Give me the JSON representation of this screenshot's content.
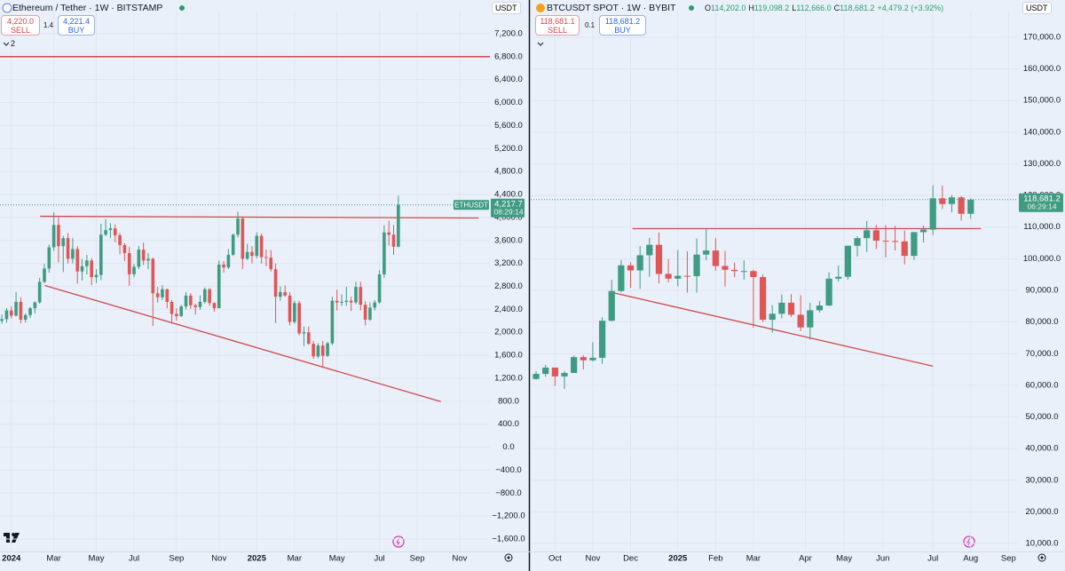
{
  "chart_data": [
    {
      "type": "candlestick",
      "title": "Ethereum / Tether · 1W · BITSTAMP",
      "currency": "USDT",
      "sell": {
        "price": "4,220.0",
        "label": "SELL"
      },
      "spread": "1.4",
      "buy": {
        "price": "4,221.4",
        "label": "BUY"
      },
      "indicators": "2",
      "up_color": "#3f9c82",
      "down_color": "#e05656",
      "grid": true,
      "candles": [
        [
          2200,
          2310,
          2150,
          2230
        ],
        [
          2230,
          2420,
          2170,
          2380
        ],
        [
          2380,
          2450,
          2240,
          2290
        ],
        [
          2290,
          2700,
          2280,
          2530
        ],
        [
          2530,
          2610,
          2160,
          2220
        ],
        [
          2220,
          2330,
          2170,
          2300
        ],
        [
          2300,
          2440,
          2250,
          2420
        ],
        [
          2420,
          2540,
          2330,
          2520
        ],
        [
          2520,
          2950,
          2500,
          2880
        ],
        [
          2880,
          3190,
          2850,
          3110
        ],
        [
          3110,
          3530,
          3040,
          3480
        ],
        [
          3480,
          4090,
          3420,
          3870
        ],
        [
          3870,
          4000,
          3220,
          3500
        ],
        [
          3500,
          3680,
          3050,
          3640
        ],
        [
          3640,
          3730,
          3200,
          3280
        ],
        [
          3280,
          3640,
          3200,
          3450
        ],
        [
          3450,
          3500,
          2850,
          3060
        ],
        [
          3060,
          3280,
          2900,
          3150
        ],
        [
          3150,
          3350,
          3010,
          3250
        ],
        [
          3250,
          3290,
          2820,
          2960
        ],
        [
          2960,
          3100,
          2860,
          3000
        ],
        [
          3000,
          3890,
          2910,
          3700
        ],
        [
          3700,
          3970,
          3680,
          3780
        ],
        [
          3780,
          3900,
          3640,
          3810
        ],
        [
          3810,
          3880,
          3570,
          3690
        ],
        [
          3690,
          3730,
          3360,
          3520
        ],
        [
          3520,
          3550,
          3240,
          3380
        ],
        [
          3380,
          3490,
          2810,
          3010
        ],
        [
          3010,
          3190,
          2960,
          3140
        ],
        [
          3140,
          3500,
          3100,
          3440
        ],
        [
          3440,
          3560,
          3170,
          3250
        ],
        [
          3250,
          3380,
          3100,
          3280
        ],
        [
          3280,
          3300,
          2110,
          2680
        ],
        [
          2680,
          2790,
          2520,
          2610
        ],
        [
          2610,
          2820,
          2560,
          2750
        ],
        [
          2750,
          2760,
          2420,
          2530
        ],
        [
          2530,
          2560,
          2150,
          2320
        ],
        [
          2320,
          2420,
          2200,
          2280
        ],
        [
          2280,
          2480,
          2270,
          2450
        ],
        [
          2450,
          2700,
          2400,
          2640
        ],
        [
          2640,
          2680,
          2410,
          2470
        ],
        [
          2470,
          2500,
          2310,
          2440
        ],
        [
          2440,
          2640,
          2390,
          2530
        ],
        [
          2530,
          2780,
          2500,
          2750
        ],
        [
          2750,
          2770,
          2460,
          2510
        ],
        [
          2510,
          2520,
          2360,
          2420
        ],
        [
          2420,
          3250,
          2420,
          3180
        ],
        [
          3180,
          3240,
          3040,
          3130
        ],
        [
          3130,
          3450,
          3100,
          3350
        ],
        [
          3350,
          3720,
          3330,
          3700
        ],
        [
          3700,
          4100,
          3650,
          3980
        ],
        [
          3980,
          4020,
          3100,
          3280
        ],
        [
          3280,
          3540,
          3260,
          3400
        ],
        [
          3400,
          3500,
          3200,
          3330
        ],
        [
          3330,
          3740,
          3290,
          3680
        ],
        [
          3680,
          3720,
          3200,
          3310
        ],
        [
          3310,
          3440,
          3150,
          3300
        ],
        [
          3300,
          3430,
          3060,
          3100
        ],
        [
          3100,
          3200,
          2160,
          2620
        ],
        [
          2620,
          2800,
          2550,
          2700
        ],
        [
          2700,
          2820,
          2620,
          2640
        ],
        [
          2640,
          2700,
          2120,
          2180
        ],
        [
          2180,
          2550,
          2150,
          2510
        ],
        [
          2510,
          2550,
          1950,
          1980
        ],
        [
          1980,
          2100,
          1760,
          2000
        ],
        [
          2000,
          2100,
          1780,
          1800
        ],
        [
          1800,
          1850,
          1540,
          1580
        ],
        [
          1580,
          1810,
          1550,
          1770
        ],
        [
          1770,
          1850,
          1380,
          1590
        ],
        [
          1590,
          1830,
          1570,
          1810
        ],
        [
          1810,
          2620,
          1780,
          2550
        ],
        [
          2550,
          2740,
          2380,
          2520
        ],
        [
          2520,
          2660,
          2460,
          2530
        ],
        [
          2530,
          2790,
          2460,
          2550
        ],
        [
          2550,
          2620,
          2370,
          2520
        ],
        [
          2520,
          2880,
          2490,
          2790
        ],
        [
          2790,
          2880,
          2380,
          2480
        ],
        [
          2480,
          2540,
          2120,
          2220
        ],
        [
          2220,
          2520,
          2200,
          2430
        ],
        [
          2430,
          2560,
          2380,
          2520
        ],
        [
          2520,
          3080,
          2500,
          3010
        ],
        [
          3010,
          3860,
          2950,
          3740
        ],
        [
          3740,
          3940,
          3510,
          3700
        ],
        [
          3700,
          3870,
          3350,
          3490
        ],
        [
          3490,
          4380,
          3480,
          4217.7
        ]
      ],
      "xlim": [
        -0.4,
        103.4
      ],
      "xticks": [
        {
          "value": 2,
          "label": "2024"
        },
        {
          "value": 11,
          "label": "Mar"
        },
        {
          "value": 20,
          "label": "May"
        },
        {
          "value": 28,
          "label": "Jul"
        },
        {
          "value": 37,
          "label": "Sep"
        },
        {
          "value": 46,
          "label": "Nov"
        },
        {
          "value": 54,
          "label": "2025"
        },
        {
          "value": 62,
          "label": "Mar"
        },
        {
          "value": 71,
          "label": "May"
        },
        {
          "value": 80,
          "label": "Jul"
        },
        {
          "value": 88,
          "label": "Sep"
        },
        {
          "value": 97,
          "label": "Nov"
        }
      ],
      "ylim": [
        -1816,
        7601
      ],
      "yticks": [
        {
          "value": 7200,
          "label": "7,200.0"
        },
        {
          "value": 6800,
          "label": "6,800.0"
        },
        {
          "value": 6400,
          "label": "6,400.0"
        },
        {
          "value": 6000,
          "label": "6,000.0"
        },
        {
          "value": 5600,
          "label": "5,600.0"
        },
        {
          "value": 5200,
          "label": "5,200.0"
        },
        {
          "value": 4800,
          "label": "4,800.0"
        },
        {
          "value": 4400,
          "label": "4,400.0"
        },
        {
          "value": 4000,
          "label": "4,000.0"
        },
        {
          "value": 3600,
          "label": "3,600.0"
        },
        {
          "value": 3200,
          "label": "3,200.0"
        },
        {
          "value": 2800,
          "label": "2,800.0"
        },
        {
          "value": 2400,
          "label": "2,400.0"
        },
        {
          "value": 2000,
          "label": "2,000.0"
        },
        {
          "value": 1600,
          "label": "1,600.0"
        },
        {
          "value": 1200,
          "label": "1,200.0"
        },
        {
          "value": 800,
          "label": "800.0"
        },
        {
          "value": 400,
          "label": "400.0"
        },
        {
          "value": 0,
          "label": "0.0"
        },
        {
          "value": -400,
          "label": "−400.0"
        },
        {
          "value": -800,
          "label": "−800.0"
        },
        {
          "value": -1200,
          "label": "−1,200.0"
        },
        {
          "value": -1600,
          "label": "−1,600.0"
        }
      ],
      "hlines": [
        {
          "value": 6800,
          "color": "#cc3b3b"
        }
      ],
      "trendlines": [
        {
          "x": [
            8.1,
            101
          ],
          "y": [
            4020,
            3990
          ],
          "color": "#cc4a4a"
        },
        {
          "x": [
            9.1,
            93
          ],
          "y": [
            2815,
            793
          ],
          "color": "#cc4a4a"
        }
      ],
      "last_price": {
        "symbol": "ETHUSDT",
        "price": {
          "value": 4217.7,
          "label": "4,217.7"
        },
        "countdown": "08:29:14"
      }
    },
    {
      "type": "candlestick",
      "title": "BTCUSDT SPOT · 1W · BYBIT",
      "currency": "USDT",
      "sell": {
        "price": "118,681.1",
        "label": "SELL"
      },
      "spread": "0.1",
      "buy": {
        "price": "118,681.2",
        "label": "BUY"
      },
      "ohlc": [
        {
          "key": "O",
          "text": "114,202.0"
        },
        {
          "key": "H",
          "text": "119,098.2"
        },
        {
          "key": "L",
          "text": "112,666.0"
        },
        {
          "key": "C",
          "text": "118,681.2"
        }
      ],
      "change": "+4,479.2 (+3.92%)",
      "up_color": "#3f9c82",
      "down_color": "#e05656",
      "grid": true,
      "candles": [
        [
          62000,
          64500,
          61800,
          63600
        ],
        [
          63600,
          66500,
          62700,
          65600
        ],
        [
          65600,
          65600,
          59800,
          62800
        ],
        [
          62800,
          64500,
          58900,
          63900
        ],
        [
          63900,
          69400,
          63900,
          68900
        ],
        [
          68900,
          69500,
          65000,
          67900
        ],
        [
          67900,
          73600,
          67500,
          68700
        ],
        [
          68700,
          81500,
          66800,
          80400
        ],
        [
          80400,
          93300,
          80200,
          89800
        ],
        [
          89800,
          99600,
          89400,
          97900
        ],
        [
          97900,
          98900,
          90800,
          96300
        ],
        [
          96300,
          104000,
          90500,
          101100
        ],
        [
          101100,
          106600,
          94300,
          104400
        ],
        [
          104400,
          108300,
          92200,
          95200
        ],
        [
          95200,
          99900,
          92500,
          93700
        ],
        [
          93700,
          102700,
          91300,
          94600
        ],
        [
          94600,
          102300,
          89300,
          94500
        ],
        [
          94500,
          106400,
          89300,
          101300
        ],
        [
          101300,
          109600,
          99500,
          102600
        ],
        [
          102600,
          106500,
          96200,
          97700
        ],
        [
          97700,
          102500,
          91200,
          96500
        ],
        [
          96500,
          98800,
          94100,
          96100
        ],
        [
          96100,
          99500,
          93400,
          96100
        ],
        [
          96100,
          96500,
          78200,
          94200
        ],
        [
          94200,
          95000,
          80000,
          80700
        ],
        [
          80700,
          85300,
          76600,
          82600
        ],
        [
          82600,
          88700,
          81200,
          86100
        ],
        [
          86100,
          88800,
          81600,
          82300
        ],
        [
          82300,
          88500,
          77100,
          78300
        ],
        [
          78300,
          86100,
          74400,
          83700
        ],
        [
          83700,
          86700,
          83000,
          85200
        ],
        [
          85200,
          95700,
          85100,
          93700
        ],
        [
          93700,
          97900,
          92800,
          94300
        ],
        [
          94300,
          104100,
          93400,
          104100
        ],
        [
          104100,
          107100,
          100700,
          106500
        ],
        [
          106500,
          111900,
          102100,
          109000
        ],
        [
          109000,
          110700,
          103100,
          105700
        ],
        [
          105700,
          110600,
          100400,
          105600
        ],
        [
          105600,
          110400,
          102600,
          105500
        ],
        [
          105500,
          108900,
          98200,
          100900
        ],
        [
          100900,
          108500,
          99600,
          108400
        ],
        [
          108400,
          110500,
          105100,
          109200
        ],
        [
          109200,
          123200,
          107500,
          119100
        ],
        [
          119100,
          123100,
          115700,
          117300
        ],
        [
          117300,
          120200,
          114700,
          119400
        ],
        [
          119400,
          119800,
          112000,
          114200
        ],
        [
          114202,
          119098.2,
          112666,
          118681.2
        ]
      ],
      "xlim": [
        -0.57,
        51.0
      ],
      "xticks": [
        {
          "value": 2,
          "label": "Oct"
        },
        {
          "value": 6,
          "label": "Nov"
        },
        {
          "value": 10,
          "label": "Dec"
        },
        {
          "value": 15,
          "label": "2025"
        },
        {
          "value": 19,
          "label": "Feb"
        },
        {
          "value": 23,
          "label": "Mar"
        },
        {
          "value": 28.5,
          "label": "Apr"
        },
        {
          "value": 32.6,
          "label": "May"
        },
        {
          "value": 36.7,
          "label": "Jun"
        },
        {
          "value": 42,
          "label": "Jul"
        },
        {
          "value": 46,
          "label": "Aug"
        },
        {
          "value": 50,
          "label": "Sep"
        }
      ],
      "ylim": [
        7478,
        178406
      ],
      "yticks": [
        {
          "value": 170000,
          "label": "170,000.0"
        },
        {
          "value": 160000,
          "label": "160,000.0"
        },
        {
          "value": 150000,
          "label": "150,000.0"
        },
        {
          "value": 140000,
          "label": "140,000.0"
        },
        {
          "value": 130000,
          "label": "130,000.0"
        },
        {
          "value": 120000,
          "label": "120,000.0"
        },
        {
          "value": 110000,
          "label": "110,000.0"
        },
        {
          "value": 100000,
          "label": "100,000.0"
        },
        {
          "value": 90000,
          "label": "90,000.0"
        },
        {
          "value": 80000,
          "label": "80,000.0"
        },
        {
          "value": 70000,
          "label": "70,000.0"
        },
        {
          "value": 60000,
          "label": "60,000.0"
        },
        {
          "value": 50000,
          "label": "50,000.0"
        },
        {
          "value": 40000,
          "label": "40,000.0"
        },
        {
          "value": 30000,
          "label": "30,000.0"
        },
        {
          "value": 20000,
          "label": "20,000.0"
        },
        {
          "value": 10000,
          "label": "10,000.0"
        }
      ],
      "hlines": [],
      "trendlines": [
        {
          "x": [
            10.2,
            47.1
          ],
          "y": [
            109500,
            109500
          ],
          "color": "#cc4a4a"
        },
        {
          "x": [
            8.1,
            42
          ],
          "y": [
            89300,
            66040
          ],
          "color": "#cc4a4a"
        }
      ],
      "last_price": {
        "price": {
          "value": 118681.2,
          "label": "118,681.2"
        },
        "countdown": "06:29:14"
      }
    }
  ]
}
